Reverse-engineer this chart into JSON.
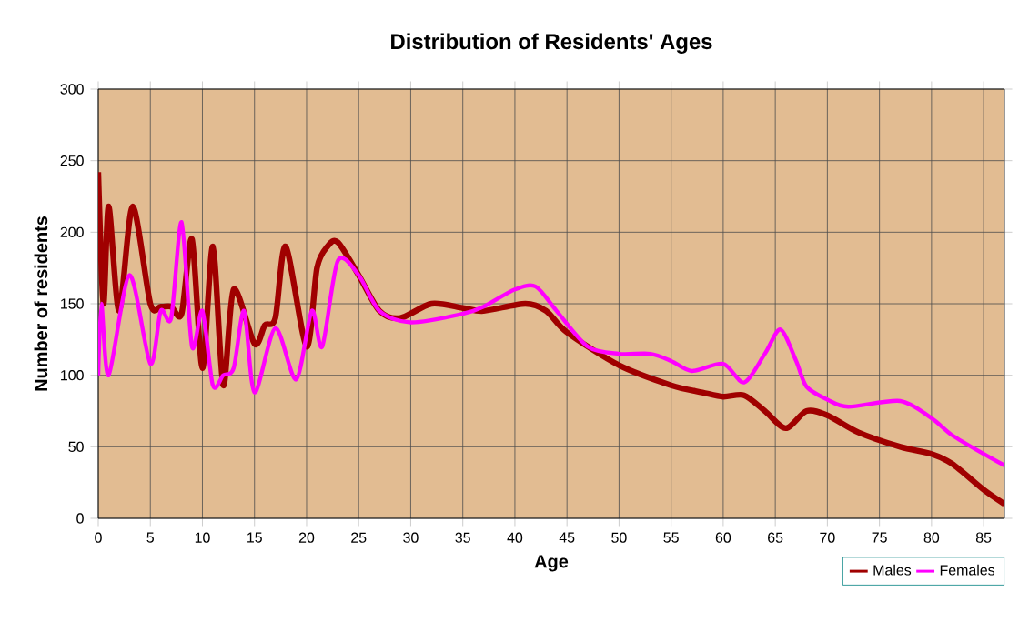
{
  "chart_data": {
    "type": "line",
    "title": "Distribution of Residents' Ages",
    "xlabel": "Age",
    "ylabel": "Number of residents",
    "xlim": [
      0,
      87
    ],
    "xticks": [
      0,
      5,
      10,
      15,
      20,
      25,
      30,
      35,
      40,
      45,
      50,
      55,
      60,
      65,
      70,
      75,
      80,
      85
    ],
    "ylim": [
      0,
      300
    ],
    "yticks": [
      0,
      50,
      100,
      150,
      200,
      250,
      300
    ],
    "grid": true,
    "legend": "bottom right",
    "series": [
      {
        "name": "Males",
        "color": "#a00000",
        "x": [
          0,
          0.5,
          1,
          2,
          3.3,
          5,
          6,
          7,
          8,
          9,
          10,
          11,
          12,
          13,
          15,
          16,
          17,
          18,
          20,
          21,
          22,
          23,
          25,
          27,
          29,
          32,
          35,
          37,
          41,
          43,
          45,
          50,
          55,
          58,
          60,
          62,
          64,
          66,
          68,
          70,
          73,
          77,
          80,
          82,
          85,
          87
        ],
        "values": [
          242,
          150,
          218,
          145,
          218,
          150,
          148,
          148,
          143,
          195,
          105,
          190,
          93,
          160,
          122,
          135,
          140,
          190,
          120,
          175,
          190,
          193,
          170,
          145,
          140,
          150,
          147,
          145,
          150,
          145,
          130,
          107,
          93,
          88,
          85,
          86,
          75,
          63,
          75,
          72,
          60,
          50,
          45,
          38,
          20,
          10
        ]
      },
      {
        "name": "Females",
        "color": "#ff00ff",
        "x": [
          0,
          0.3,
          1,
          3,
          5,
          6,
          7,
          8,
          9,
          10,
          11,
          12,
          13,
          14,
          15,
          17,
          19,
          20.5,
          21.5,
          23,
          25,
          27,
          30,
          35,
          37,
          40,
          42,
          44,
          47,
          50,
          53,
          55,
          57,
          60,
          62,
          64,
          65.5,
          67,
          68,
          70,
          72,
          77,
          80,
          82,
          85,
          87
        ],
        "values": [
          100,
          150,
          100,
          170,
          108,
          145,
          140,
          207,
          120,
          145,
          93,
          100,
          105,
          145,
          88,
          133,
          97,
          145,
          120,
          180,
          170,
          145,
          137,
          143,
          148,
          160,
          162,
          145,
          120,
          115,
          115,
          110,
          103,
          108,
          95,
          115,
          132,
          110,
          92,
          83,
          78,
          82,
          70,
          58,
          45,
          37
        ]
      }
    ]
  }
}
